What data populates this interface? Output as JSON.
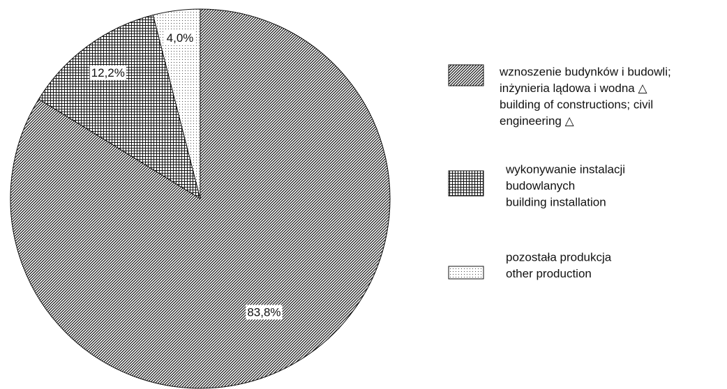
{
  "chart_data": {
    "type": "pie",
    "series": [
      {
        "name": [
          "wznoszenie budynków i budowli;",
          "inżynieria lądowa i wodna △",
          "building of constructions; civil",
          "engineering △"
        ],
        "value": 83.8,
        "value_label": "83,8%",
        "pattern": "diagonal"
      },
      {
        "name": [
          "wykonywanie instalacji",
          "budowlanych",
          "building installation"
        ],
        "value": 12.2,
        "value_label": "12,2%",
        "pattern": "grid"
      },
      {
        "name": [
          "pozostała produkcja",
          "other production"
        ],
        "value": 4.0,
        "value_label": "4,0%",
        "pattern": "dots"
      }
    ],
    "legend": "right"
  }
}
